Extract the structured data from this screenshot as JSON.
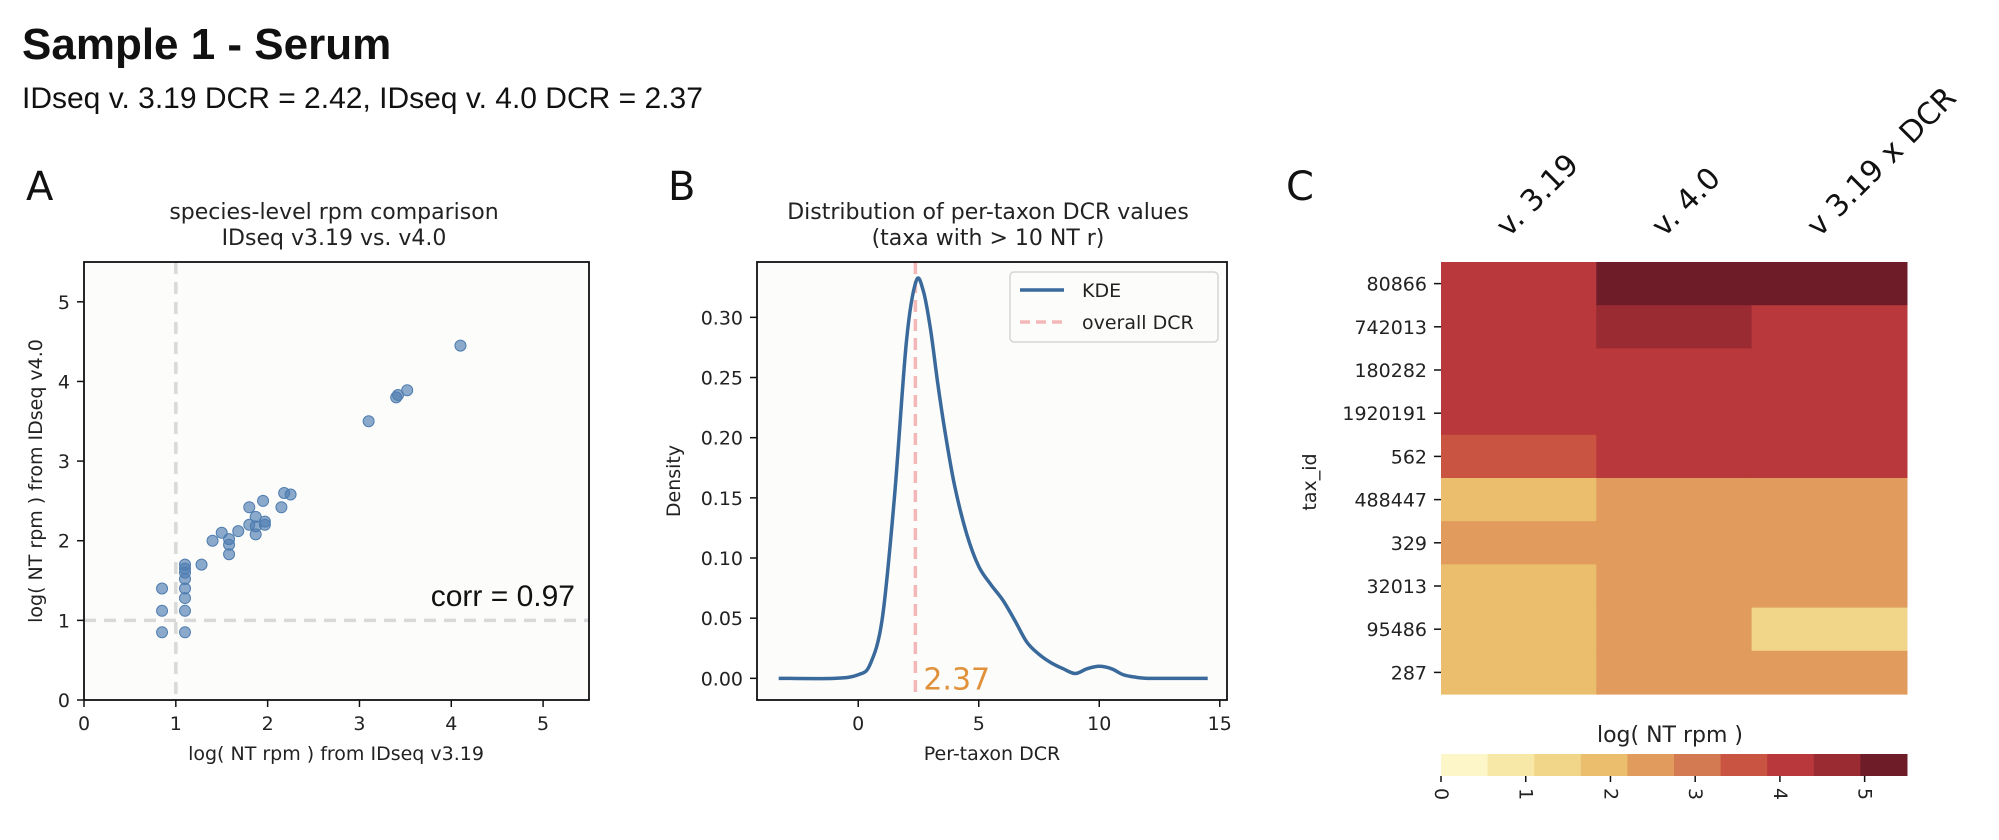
{
  "header": {
    "title": "Sample 1 - Serum",
    "subtitle": "IDseq v. 3.19 DCR = 2.42, IDseq v. 4.0 DCR = 2.37"
  },
  "colors": {
    "scatter": "#4f7db0",
    "kde": "#3a6a9b",
    "dcr_line": "#f2b8b8",
    "dcr_text": "#e0913a",
    "guide": "#d9d9d9"
  },
  "chart_data": [
    {
      "type": "scatter",
      "panel_label": "A",
      "title": "species-level rpm comparison",
      "subtitle": "IDseq v3.19 vs. v4.0",
      "xlabel": "log( NT rpm ) from IDseq v3.19",
      "ylabel": "log( NT rpm ) from IDseq v4.0",
      "xlim": [
        0,
        5.5
      ],
      "ylim": [
        0,
        5.5
      ],
      "xticks": [
        0,
        1,
        2,
        3,
        4,
        5
      ],
      "yticks": [
        0,
        1,
        2,
        3,
        4,
        5
      ],
      "guide_x": 1,
      "guide_y": 1,
      "annotation": "corr = 0.97",
      "points": [
        [
          0.85,
          1.4
        ],
        [
          0.85,
          1.12
        ],
        [
          0.85,
          0.85
        ],
        [
          1.1,
          1.7
        ],
        [
          1.1,
          1.65
        ],
        [
          1.1,
          1.6
        ],
        [
          1.1,
          1.52
        ],
        [
          1.1,
          1.4
        ],
        [
          1.1,
          1.28
        ],
        [
          1.1,
          1.12
        ],
        [
          1.1,
          0.85
        ],
        [
          1.28,
          1.7
        ],
        [
          1.4,
          2.0
        ],
        [
          1.5,
          2.1
        ],
        [
          1.58,
          2.02
        ],
        [
          1.58,
          1.95
        ],
        [
          1.58,
          1.83
        ],
        [
          1.68,
          2.12
        ],
        [
          1.8,
          2.42
        ],
        [
          1.8,
          2.2
        ],
        [
          1.87,
          2.3
        ],
        [
          1.87,
          2.18
        ],
        [
          1.87,
          2.08
        ],
        [
          1.95,
          2.5
        ],
        [
          1.97,
          2.24
        ],
        [
          1.97,
          2.2
        ],
        [
          2.15,
          2.42
        ],
        [
          2.18,
          2.6
        ],
        [
          2.25,
          2.58
        ],
        [
          3.1,
          3.5
        ],
        [
          3.4,
          3.8
        ],
        [
          3.42,
          3.83
        ],
        [
          3.52,
          3.89
        ],
        [
          4.1,
          4.45
        ]
      ]
    },
    {
      "type": "line",
      "panel_label": "B",
      "title": "Distribution of per-taxon DCR values",
      "subtitle": "(taxa with > 10 NT r)",
      "xlabel": "Per-taxon DCR",
      "ylabel": "Density",
      "xlim": [
        -4.2,
        15.3
      ],
      "ylim": [
        -0.018,
        0.346
      ],
      "xticks": [
        0,
        5,
        10,
        15
      ],
      "yticks": [
        0.0,
        0.05,
        0.1,
        0.15,
        0.2,
        0.25,
        0.3
      ],
      "legend": [
        "KDE",
        "overall DCR"
      ],
      "legend_position": "top-right",
      "overall_dcr": 2.37,
      "dcr_label": "2.37",
      "series": [
        {
          "name": "KDE",
          "x": [
            -3.3,
            -1.0,
            0.0,
            0.5,
            1.0,
            1.5,
            2.0,
            2.4,
            2.7,
            3.0,
            3.3,
            3.6,
            4.0,
            4.5,
            5.0,
            5.5,
            6.0,
            6.5,
            7.0,
            7.5,
            8.0,
            8.5,
            9.0,
            9.5,
            10.0,
            10.5,
            11.0,
            11.5,
            12.0,
            13.0,
            14.5
          ],
          "y": [
            0.0,
            0.0,
            0.003,
            0.012,
            0.05,
            0.15,
            0.28,
            0.33,
            0.322,
            0.29,
            0.245,
            0.205,
            0.16,
            0.12,
            0.093,
            0.078,
            0.065,
            0.048,
            0.03,
            0.02,
            0.013,
            0.008,
            0.004,
            0.008,
            0.01,
            0.008,
            0.003,
            0.001,
            0.0,
            0.0,
            0.0
          ]
        }
      ]
    },
    {
      "type": "heatmap",
      "panel_label": "C",
      "columns": [
        "v. 3.19",
        "v. 4.0",
        "v 3.19 x DCR"
      ],
      "rows": [
        "80866",
        "742013",
        "180282",
        "1920191",
        "562",
        "488447",
        "329",
        "32013",
        "95486",
        "287"
      ],
      "ylabel": "tax_id",
      "values": [
        [
          4.3,
          5.1,
          5.0
        ],
        [
          4.0,
          4.4,
          4.3
        ],
        [
          4.0,
          3.9,
          3.9
        ],
        [
          4.0,
          3.9,
          3.9
        ],
        [
          3.4,
          4.0,
          3.9
        ],
        [
          1.8,
          2.3,
          2.3
        ],
        [
          2.3,
          2.3,
          2.2
        ],
        [
          1.7,
          2.2,
          2.2
        ],
        [
          1.7,
          2.3,
          1.6
        ],
        [
          1.7,
          2.3,
          2.3
        ]
      ],
      "colorbar": {
        "label": "log( NT rpm )",
        "range": [
          0,
          5.5
        ],
        "ticks": [
          0,
          1,
          2,
          3,
          4,
          5
        ],
        "colors": [
          "#fdf6c8",
          "#f8e8a8",
          "#f1d68a",
          "#eabe6d",
          "#e09b5d",
          "#d47a52",
          "#c95441",
          "#b8383b",
          "#9a2b33",
          "#6e1c28"
        ]
      }
    }
  ]
}
